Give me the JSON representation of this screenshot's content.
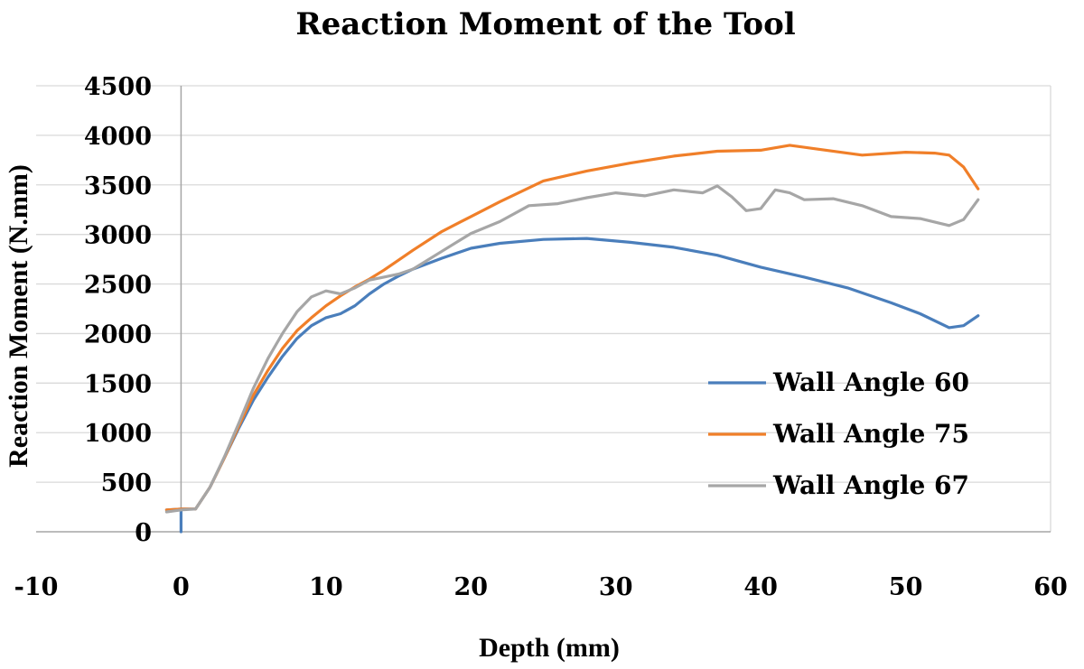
{
  "chart_data": {
    "type": "line",
    "title": "Reaction Moment of the Tool",
    "xlabel": "Depth (mm)",
    "ylabel": "Reaction Moment (N.mm)",
    "xlim": [
      -10,
      60
    ],
    "ylim": [
      0,
      4500
    ],
    "x_ticks": [
      -10,
      0,
      10,
      20,
      30,
      40,
      50,
      60
    ],
    "y_ticks": [
      0,
      500,
      1000,
      1500,
      2000,
      2500,
      3000,
      3500,
      4000,
      4500
    ],
    "grid": "horizontal",
    "legend_position": "right",
    "series": [
      {
        "name": "Wall Angle 60",
        "color": "#4a7ebb",
        "x": [
          -1,
          0,
          0,
          0,
          1,
          2,
          3,
          4,
          5,
          6,
          7,
          8,
          9,
          10,
          11,
          12,
          13,
          14,
          15,
          16,
          18,
          20,
          22,
          25,
          28,
          31,
          34,
          37,
          40,
          43,
          46,
          49,
          51,
          53,
          54,
          55
        ],
        "y": [
          220,
          230,
          0,
          230,
          230,
          450,
          750,
          1050,
          1330,
          1560,
          1770,
          1950,
          2080,
          2160,
          2200,
          2280,
          2400,
          2500,
          2580,
          2650,
          2760,
          2860,
          2910,
          2950,
          2960,
          2920,
          2870,
          2790,
          2670,
          2570,
          2460,
          2310,
          2200,
          2060,
          2080,
          2180
        ]
      },
      {
        "name": "Wall Angle 75",
        "color": "#f07f29",
        "x": [
          -1,
          0,
          1,
          2,
          3,
          4,
          5,
          6,
          7,
          8,
          9,
          10,
          11,
          12,
          13,
          14,
          15,
          16,
          18,
          20,
          22,
          25,
          28,
          31,
          34,
          37,
          40,
          42,
          44,
          47,
          50,
          52,
          53,
          54,
          55
        ],
        "y": [
          220,
          230,
          230,
          450,
          750,
          1070,
          1380,
          1630,
          1850,
          2030,
          2160,
          2280,
          2380,
          2470,
          2550,
          2640,
          2740,
          2840,
          3030,
          3180,
          3330,
          3540,
          3640,
          3720,
          3790,
          3840,
          3850,
          3900,
          3860,
          3800,
          3830,
          3820,
          3800,
          3680,
          3460
        ]
      },
      {
        "name": "Wall Angle 67",
        "color": "#a6a6a6",
        "x": [
          -1,
          0,
          1,
          2,
          3,
          4,
          5,
          6,
          7,
          8,
          9,
          10,
          11,
          12,
          13,
          14,
          15,
          16,
          18,
          20,
          22,
          24,
          26,
          28,
          30,
          32,
          34,
          36,
          37,
          38,
          39,
          40,
          41,
          42,
          43,
          45,
          47,
          49,
          51,
          53,
          54,
          55
        ],
        "y": [
          200,
          220,
          230,
          450,
          760,
          1100,
          1450,
          1750,
          2000,
          2220,
          2370,
          2430,
          2400,
          2460,
          2540,
          2570,
          2600,
          2650,
          2830,
          3010,
          3130,
          3290,
          3310,
          3370,
          3420,
          3390,
          3450,
          3420,
          3490,
          3380,
          3240,
          3260,
          3450,
          3420,
          3350,
          3360,
          3290,
          3180,
          3160,
          3090,
          3150,
          3350
        ]
      }
    ]
  }
}
